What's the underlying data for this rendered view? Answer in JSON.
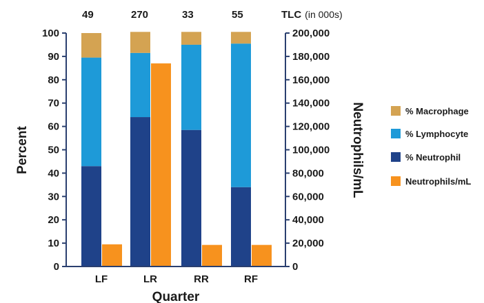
{
  "chart_data": {
    "type": "bar",
    "categories": [
      "LF",
      "LR",
      "RR",
      "RF"
    ],
    "series": [
      {
        "name": "% Neutrophil",
        "stack": "percent",
        "axis": "left",
        "values": [
          43,
          64,
          58.5,
          34
        ]
      },
      {
        "name": "% Lymphocyte",
        "stack": "percent",
        "axis": "left",
        "values": [
          46.5,
          27.5,
          36.5,
          61.5
        ]
      },
      {
        "name": "% Macrophage",
        "stack": "percent",
        "axis": "left",
        "values": [
          10.5,
          9,
          5.5,
          5
        ]
      },
      {
        "name": "Neutrophils/mL",
        "axis": "right",
        "values": [
          19000,
          174000,
          18500,
          18500
        ]
      }
    ],
    "legend_order": [
      "% Macrophage",
      "% Lymphocyte",
      "% Neutrophil",
      "Neutrophils/mL"
    ],
    "colors": {
      "% Macrophage": "#d4a352",
      "% Lymphocyte": "#1e9ad8",
      "% Neutrophil": "#1f4289",
      "Neutrophils/mL": "#f7921e"
    },
    "xlabel": "Quarter",
    "ylabel": "Percent",
    "ylabel_right": "Neutrophils/mL",
    "ylim": [
      0,
      100
    ],
    "ylim_right": [
      0,
      200000
    ],
    "yticks": [
      0,
      10,
      20,
      30,
      40,
      50,
      60,
      70,
      80,
      90,
      100
    ],
    "yticks_right": [
      "0",
      "20,000",
      "40,000",
      "60,000",
      "80,000",
      "100,000",
      "120,000",
      "140,000",
      "160,000",
      "180,000",
      "200,000"
    ],
    "top_labels": [
      "49",
      "270",
      "33",
      "55"
    ],
    "top_axis_label": "TLC",
    "top_axis_unit": "(in 000s)",
    "legend_position": "right",
    "grid": false
  }
}
